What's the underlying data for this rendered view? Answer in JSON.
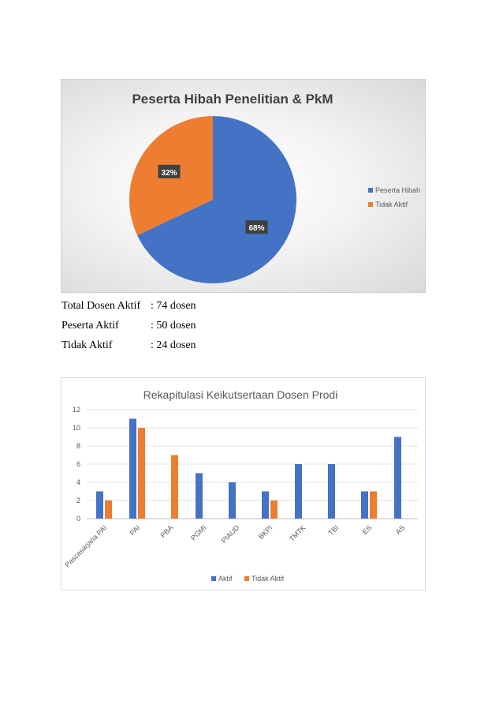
{
  "chart_data": [
    {
      "type": "pie",
      "title": "Peserta Hibah Penelitian & PkM",
      "slices": [
        {
          "label": "Peserta Hibah",
          "value": 68,
          "display": "68%",
          "color": "#4472c4"
        },
        {
          "label": "Tidak Aktif",
          "value": 32,
          "display": "32%",
          "color": "#ed7d31"
        }
      ],
      "legend_position": "right"
    },
    {
      "type": "bar",
      "title": "Rekapitulasi Keikutsertaan Dosen Prodi",
      "categories": [
        "Pascasarjana PAI",
        "PAI",
        "PBA",
        "PGMI",
        "PIAUD",
        "BKPI",
        "TMTK",
        "TBI",
        "ES",
        "AS"
      ],
      "series": [
        {
          "name": "Aktif",
          "color": "#4472c4",
          "values": [
            3,
            11,
            null,
            5,
            4,
            3,
            6,
            6,
            3,
            9
          ]
        },
        {
          "name": "Tidak Aktif",
          "color": "#ed7d31",
          "values": [
            2,
            10,
            7,
            null,
            null,
            2,
            null,
            null,
            3,
            null
          ]
        }
      ],
      "ylim": [
        0,
        12
      ],
      "yticks": [
        0,
        2,
        4,
        6,
        8,
        10,
        12
      ],
      "grid": true,
      "legend_position": "bottom"
    }
  ],
  "stats": [
    {
      "label": "Total Dosen Aktif",
      "value": ": 74 dosen"
    },
    {
      "label": "Peserta Aktif",
      "value": ": 50 dosen"
    },
    {
      "label": "Tidak Aktif",
      "value": ": 24 dosen"
    }
  ]
}
